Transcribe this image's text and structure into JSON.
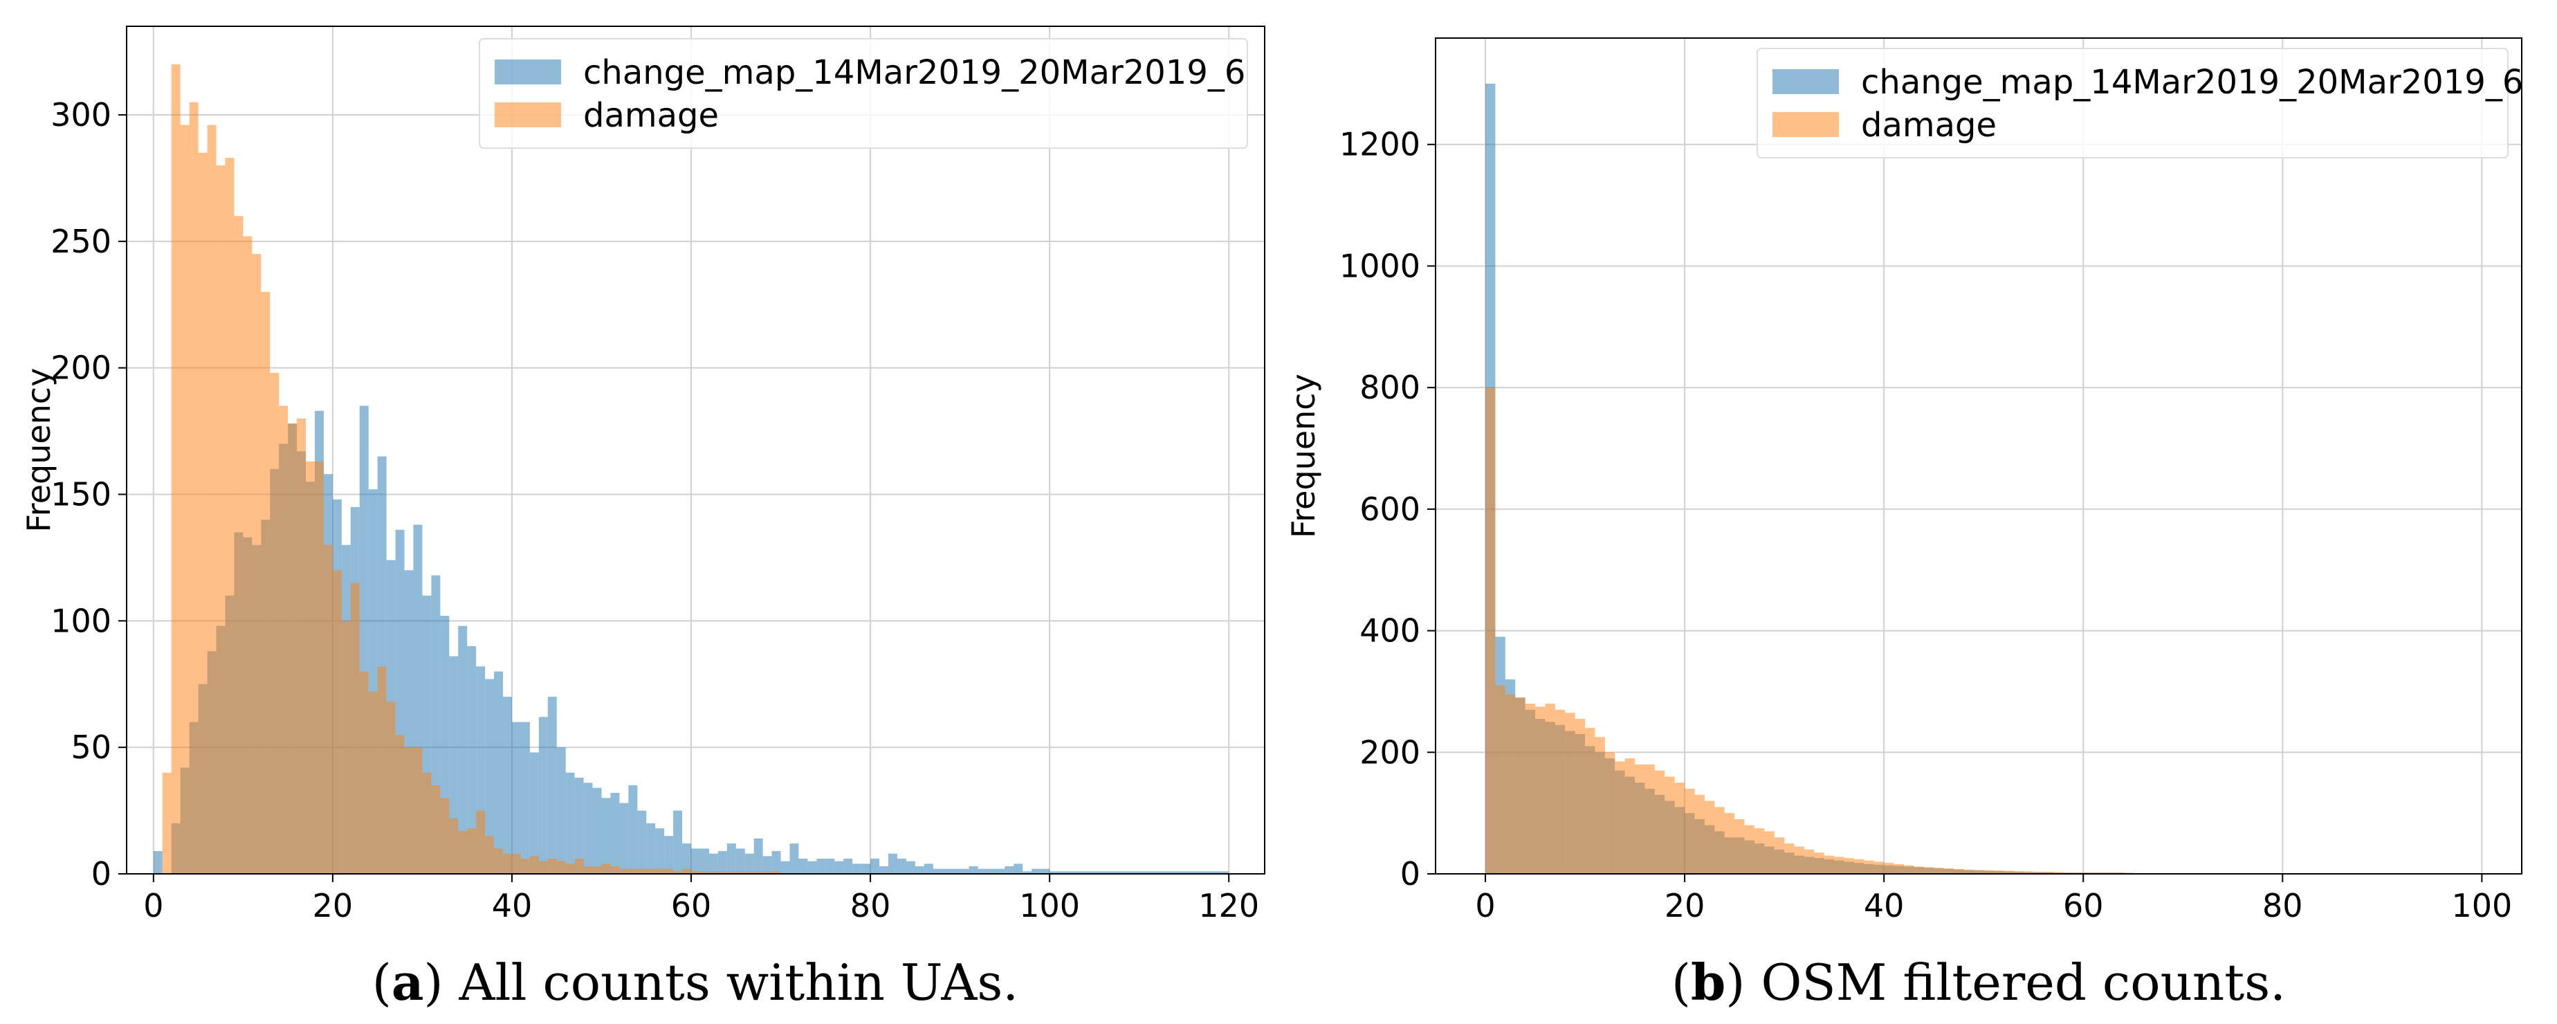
{
  "chart_data": [
    {
      "type": "histogram",
      "panel": "a",
      "caption_letter": "a",
      "caption_text": "All counts within UAs.",
      "title": "",
      "xlabel": "",
      "ylabel": "Frequency",
      "xlim": [
        -3,
        124
      ],
      "ylim": [
        0,
        335
      ],
      "xticks": [
        0,
        20,
        40,
        60,
        80,
        100,
        120
      ],
      "yticks": [
        0,
        50,
        100,
        150,
        200,
        250,
        300
      ],
      "grid": true,
      "legend_position": "top-right",
      "bin_width": 1,
      "series": [
        {
          "name": "change_map_14Mar2019_20Mar2019_6",
          "color": "#1f77b4",
          "bin_start": 0,
          "values": [
            9,
            0,
            20,
            42,
            60,
            75,
            88,
            98,
            110,
            135,
            133,
            130,
            140,
            160,
            170,
            178,
            167,
            155,
            183,
            158,
            148,
            130,
            145,
            185,
            152,
            165,
            124,
            136,
            120,
            138,
            110,
            118,
            102,
            86,
            98,
            90,
            82,
            77,
            80,
            70,
            60,
            60,
            48,
            62,
            70,
            50,
            40,
            38,
            36,
            34,
            30,
            32,
            28,
            35,
            25,
            20,
            18,
            15,
            25,
            12,
            10,
            10,
            8,
            9,
            12,
            10,
            8,
            14,
            7,
            9,
            5,
            12,
            6,
            5,
            6,
            6,
            5,
            6,
            4,
            4,
            6,
            3,
            8,
            6,
            5,
            3,
            4,
            2,
            2,
            2,
            2,
            3,
            2,
            2,
            2,
            3,
            4,
            1,
            2,
            2,
            1,
            1,
            1,
            1,
            1,
            1,
            1,
            1,
            1,
            1,
            1,
            1,
            1,
            1,
            1,
            1,
            1,
            1,
            1,
            1
          ]
        },
        {
          "name": "damage",
          "color": "#ff7f0e",
          "bin_start": 0,
          "values": [
            0,
            40,
            320,
            296,
            305,
            285,
            296,
            280,
            283,
            260,
            252,
            245,
            230,
            198,
            185,
            178,
            180,
            163,
            163,
            130,
            120,
            100,
            115,
            80,
            72,
            82,
            68,
            55,
            50,
            50,
            40,
            35,
            30,
            22,
            17,
            18,
            25,
            15,
            10,
            8,
            8,
            6,
            7,
            5,
            6,
            5,
            4,
            6,
            3,
            3,
            4,
            3,
            2,
            2,
            2,
            2,
            2,
            2,
            1,
            2,
            1,
            1,
            1,
            1,
            1,
            1,
            1,
            1,
            1,
            1,
            0,
            0,
            0,
            0,
            0,
            0,
            0,
            0,
            0,
            0,
            0,
            0,
            0,
            0,
            0,
            0,
            0,
            0,
            0,
            0
          ]
        }
      ]
    },
    {
      "type": "histogram",
      "panel": "b",
      "caption_letter": "b",
      "caption_text": "OSM filtered counts.",
      "title": "",
      "xlabel": "",
      "ylabel": "Frequency",
      "xlim": [
        -5,
        104
      ],
      "ylim": [
        0,
        1375
      ],
      "xticks": [
        0,
        20,
        40,
        60,
        80,
        100
      ],
      "yticks": [
        0,
        200,
        400,
        600,
        800,
        1000,
        1200
      ],
      "grid": true,
      "legend_position": "top-right",
      "bin_width": 1,
      "series": [
        {
          "name": "change_map_14Mar2019_20Mar2019_6",
          "color": "#1f77b4",
          "bin_start": 0,
          "values": [
            1300,
            390,
            320,
            290,
            270,
            255,
            250,
            245,
            235,
            230,
            210,
            200,
            190,
            170,
            160,
            150,
            140,
            130,
            120,
            110,
            100,
            90,
            80,
            70,
            60,
            60,
            55,
            50,
            45,
            40,
            35,
            30,
            28,
            26,
            24,
            22,
            20,
            18,
            16,
            15,
            14,
            13,
            12,
            11,
            10,
            9,
            8,
            7,
            6,
            6,
            5,
            5,
            4,
            4,
            3,
            3,
            3,
            2,
            2,
            2,
            2,
            2,
            2,
            2,
            1,
            1,
            1,
            1,
            1,
            1,
            1,
            1,
            1,
            1,
            1,
            1,
            1,
            1,
            1,
            1,
            1,
            1,
            1,
            1,
            1,
            1,
            1,
            1,
            1,
            1,
            1,
            1,
            1,
            1,
            1,
            1,
            1,
            1,
            1,
            1
          ]
        },
        {
          "name": "damage",
          "color": "#ff7f0e",
          "bin_start": 0,
          "values": [
            800,
            310,
            295,
            290,
            280,
            275,
            280,
            270,
            265,
            255,
            240,
            225,
            200,
            185,
            190,
            180,
            180,
            170,
            160,
            150,
            140,
            130,
            120,
            110,
            100,
            90,
            80,
            75,
            70,
            60,
            50,
            45,
            40,
            35,
            30,
            28,
            26,
            24,
            22,
            20,
            18,
            16,
            14,
            12,
            11,
            10,
            9,
            8,
            7,
            6,
            6,
            5,
            5,
            4,
            4,
            3,
            3,
            3,
            2,
            2,
            2,
            2,
            2,
            2,
            2,
            1,
            1,
            1,
            1,
            1,
            1,
            1,
            1,
            1,
            1,
            1,
            1,
            1,
            1,
            1,
            1,
            1,
            1,
            1,
            1,
            1,
            1,
            1,
            1,
            1,
            1,
            1,
            1,
            1,
            1,
            1,
            1,
            1,
            1,
            1
          ]
        }
      ]
    }
  ]
}
